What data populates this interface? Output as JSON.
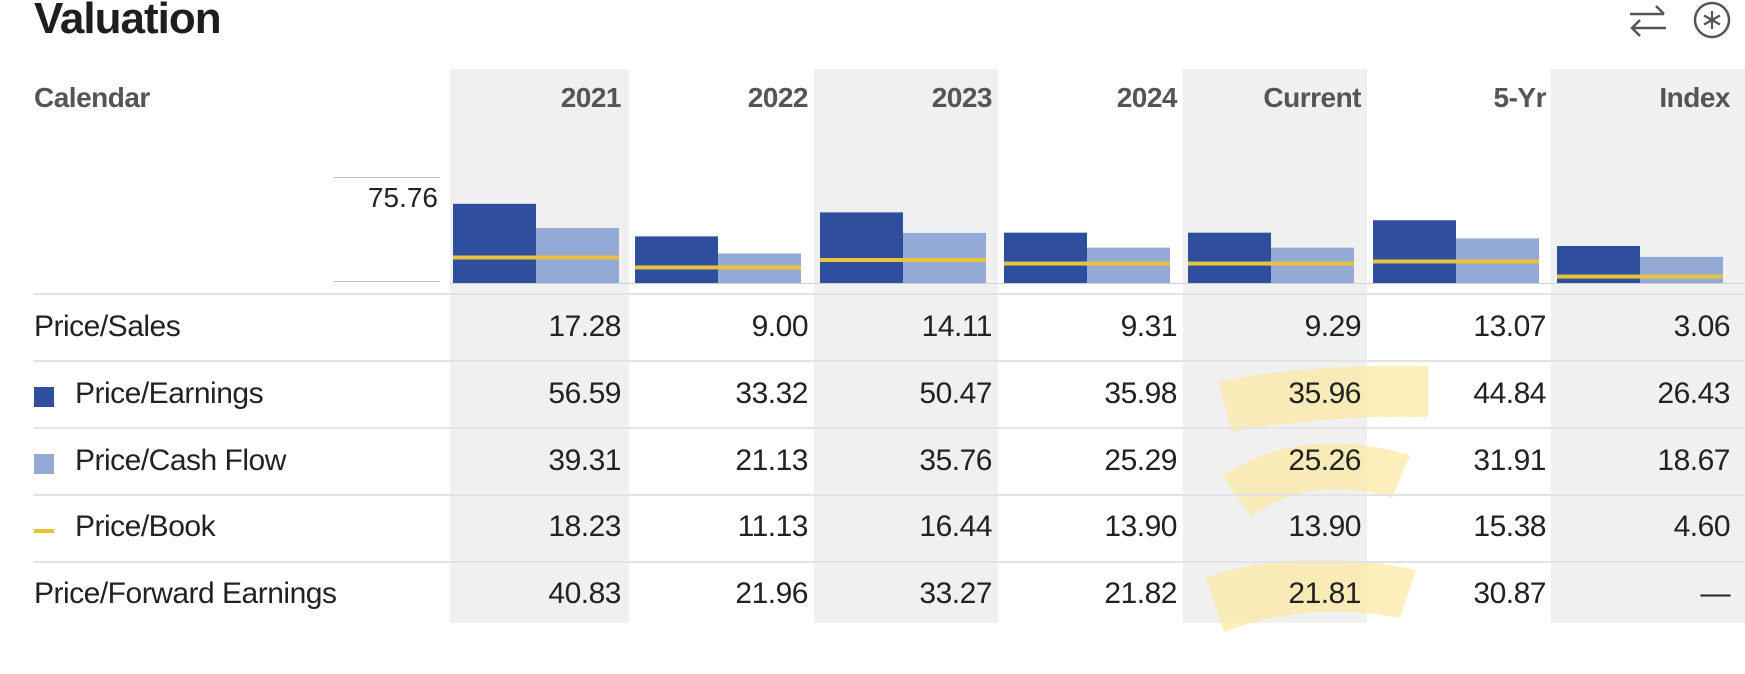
{
  "title": "Valuation",
  "icons": [
    "swap-arrows-icon",
    "asterisk-circle-icon"
  ],
  "colors": {
    "pe": "#2e4f9e",
    "pcf": "#93a9d6",
    "pb": "#e8c23d",
    "highlight": "#fbe9a6",
    "stripe": "#f0f0f0"
  },
  "chart_data": {
    "type": "bar",
    "categories": [
      "2021",
      "2022",
      "2023",
      "2024",
      "Current",
      "5-Yr",
      "Index"
    ],
    "max_label": "75.76",
    "ylim": [
      0,
      75.76
    ],
    "series": [
      {
        "name": "Price/Earnings",
        "values": [
          56.59,
          33.32,
          50.47,
          35.98,
          35.96,
          44.84,
          26.43
        ]
      },
      {
        "name": "Price/Cash Flow",
        "values": [
          39.31,
          21.13,
          35.76,
          25.29,
          25.26,
          31.91,
          18.67
        ]
      },
      {
        "name": "Price/Book",
        "values": [
          18.23,
          11.13,
          16.44,
          13.9,
          13.9,
          15.38,
          4.6
        ]
      }
    ]
  },
  "table": {
    "corner_label": "Calendar",
    "columns": [
      "2021",
      "2022",
      "2023",
      "2024",
      "Current",
      "5-Yr",
      "Index"
    ],
    "rows": [
      {
        "label": "Price/Sales",
        "swatch": "",
        "values": [
          "17.28",
          "9.00",
          "14.11",
          "9.31",
          "9.29",
          "13.07",
          "3.06"
        ]
      },
      {
        "label": "Price/Earnings",
        "swatch": "pe",
        "values": [
          "56.59",
          "33.32",
          "50.47",
          "35.98",
          "35.96",
          "44.84",
          "26.43"
        ]
      },
      {
        "label": "Price/Cash Flow",
        "swatch": "pcf",
        "values": [
          "39.31",
          "21.13",
          "35.76",
          "25.29",
          "25.26",
          "31.91",
          "18.67"
        ]
      },
      {
        "label": "Price/Book",
        "swatch": "pb",
        "values": [
          "18.23",
          "11.13",
          "16.44",
          "13.90",
          "13.90",
          "15.38",
          "4.60"
        ]
      },
      {
        "label": "Price/Forward Earnings",
        "swatch": "",
        "values": [
          "40.83",
          "21.96",
          "33.27",
          "21.82",
          "21.81",
          "30.87",
          "—"
        ]
      }
    ]
  }
}
